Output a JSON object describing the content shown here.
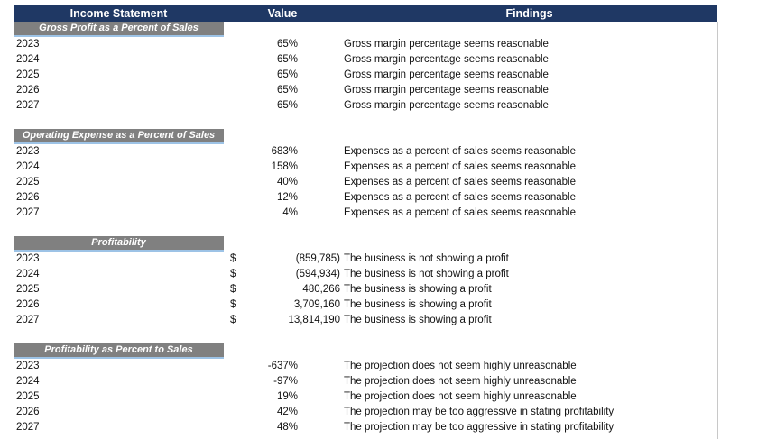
{
  "header": {
    "label": "Income Statement",
    "value": "Value",
    "findings": "Findings"
  },
  "sections": [
    {
      "title": "Gross Profit as a Percent of Sales",
      "rows": [
        {
          "year": "2023",
          "value": "65%",
          "finding": "Gross margin percentage seems reasonable"
        },
        {
          "year": "2024",
          "value": "65%",
          "finding": "Gross margin percentage seems reasonable"
        },
        {
          "year": "2025",
          "value": "65%",
          "finding": "Gross margin percentage seems reasonable"
        },
        {
          "year": "2026",
          "value": "65%",
          "finding": "Gross margin percentage seems reasonable"
        },
        {
          "year": "2027",
          "value": "65%",
          "finding": "Gross margin percentage seems reasonable"
        }
      ]
    },
    {
      "title": "Operating Expense as a Percent of Sales",
      "rows": [
        {
          "year": "2023",
          "value": "683%",
          "finding": "Expenses as a percent of sales seems reasonable"
        },
        {
          "year": "2024",
          "value": "158%",
          "finding": "Expenses as a percent of sales seems reasonable"
        },
        {
          "year": "2025",
          "value": "40%",
          "finding": "Expenses as a percent of sales seems reasonable"
        },
        {
          "year": "2026",
          "value": "12%",
          "finding": "Expenses as a percent of sales seems reasonable"
        },
        {
          "year": "2027",
          "value": "4%",
          "finding": "Expenses as a percent of sales seems reasonable"
        }
      ]
    },
    {
      "title": "Profitability",
      "rows": [
        {
          "year": "2023",
          "currency": "$",
          "value": "(859,785)",
          "finding": "The business is not showing a profit"
        },
        {
          "year": "2024",
          "currency": "$",
          "value": "(594,934)",
          "finding": "The business is not showing a profit"
        },
        {
          "year": "2025",
          "currency": "$",
          "value": "480,266",
          "finding": "The business is showing a profit"
        },
        {
          "year": "2026",
          "currency": "$",
          "value": "3,709,160",
          "finding": "The business is showing a profit"
        },
        {
          "year": "2027",
          "currency": "$",
          "value": "13,814,190",
          "finding": "The business is showing a profit"
        }
      ]
    },
    {
      "title": "Profitability as Percent to Sales",
      "rows": [
        {
          "year": "2023",
          "value": "-637%",
          "finding": "The projection does not seem highly unreasonable"
        },
        {
          "year": "2024",
          "value": "-97%",
          "finding": "The projection does not seem highly unreasonable"
        },
        {
          "year": "2025",
          "value": "19%",
          "finding": "The projection does not seem highly unreasonable"
        },
        {
          "year": "2026",
          "value": "42%",
          "finding": "The projection may be too aggressive in stating profitability"
        },
        {
          "year": "2027",
          "value": "48%",
          "finding": "The projection may be too aggressive in stating profitability"
        }
      ]
    }
  ]
}
